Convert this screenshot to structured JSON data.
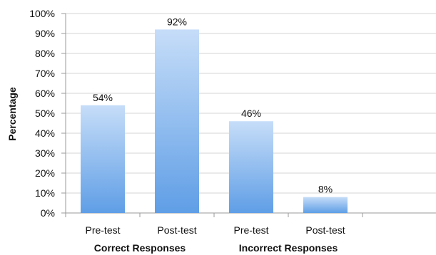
{
  "chart_data": {
    "type": "bar",
    "categories": [
      "Pre-test",
      "Post-test",
      "Pre-test",
      "Post-test"
    ],
    "groups": [
      {
        "label": "Correct Responses",
        "categories": [
          0,
          1
        ]
      },
      {
        "label": "Incorrect Responses",
        "categories": [
          2,
          3
        ]
      }
    ],
    "values": [
      54,
      92,
      46,
      8
    ],
    "data_labels": [
      "54%",
      "92%",
      "46%",
      "8%"
    ],
    "title": "",
    "xlabel": "",
    "ylabel": "Percentage",
    "ylim": [
      0,
      100
    ],
    "y_ticks": [
      0,
      10,
      20,
      30,
      40,
      50,
      60,
      70,
      80,
      90,
      100
    ],
    "y_tick_labels": [
      "0%",
      "10%",
      "20%",
      "30%",
      "40%",
      "50%",
      "60%",
      "70%",
      "80%",
      "90%",
      "100%"
    ],
    "grid": "horizontal",
    "legend": "none",
    "colors": {
      "bar_top": "#c6ddf8",
      "bar_bottom": "#5f9ee6",
      "grid": "#d6d6d6",
      "axis": "#9a9a9a"
    }
  }
}
